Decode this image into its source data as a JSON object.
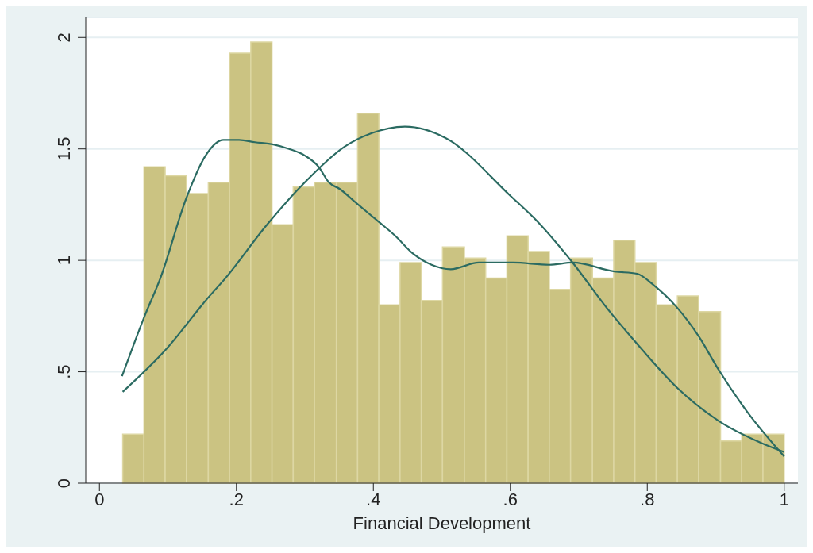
{
  "chart_data": {
    "type": "histogram",
    "xlabel": "Financial Development",
    "xlim": [
      -0.02,
      1.02
    ],
    "ylim": [
      0,
      2.09
    ],
    "xticks": [
      0,
      {
        "value": 0.2,
        "label": ".2"
      },
      {
        "value": 0.4,
        "label": ".4"
      },
      {
        "value": 0.6,
        "label": ".6"
      },
      {
        "value": 0.8,
        "label": ".8"
      },
      1
    ],
    "yticks": [
      0,
      {
        "value": 0.5,
        "label": ".5"
      },
      1,
      {
        "value": 1.5,
        "label": "1.5"
      },
      2
    ],
    "grid": "y",
    "series": [
      {
        "type": "histogram",
        "color": "#cbc382",
        "bins": [
          0.034,
          0.065,
          0.096,
          0.127,
          0.159,
          0.19,
          0.221,
          0.252,
          0.283,
          0.314,
          0.346,
          0.377,
          0.408,
          0.439,
          0.47,
          0.501,
          0.533,
          0.564,
          0.595,
          0.626,
          0.657,
          0.688,
          0.72,
          0.751,
          0.782,
          0.813,
          0.844,
          0.875,
          0.907,
          0.938,
          0.969,
          1.0
        ],
        "values": [
          0.22,
          1.42,
          1.38,
          1.3,
          1.35,
          1.93,
          1.98,
          1.16,
          1.33,
          1.35,
          1.35,
          1.66,
          0.8,
          0.99,
          0.82,
          1.06,
          1.01,
          0.92,
          1.11,
          1.04,
          0.87,
          1.01,
          0.92,
          1.09,
          0.99,
          0.8,
          0.84,
          0.77,
          0.19,
          0.22,
          0.22
        ]
      },
      {
        "type": "line",
        "color": "#2b6b62",
        "x": [
          0.033,
          0.066,
          0.089,
          0.127,
          0.155,
          0.181,
          0.204,
          0.227,
          0.254,
          0.277,
          0.3,
          0.32,
          0.335,
          0.351,
          0.374,
          0.409,
          0.432,
          0.458,
          0.485,
          0.513,
          0.554,
          0.604,
          0.657,
          0.691,
          0.752,
          0.785,
          0.809,
          0.843,
          0.875,
          0.904,
          0.946,
          1.0
        ],
        "values": [
          0.48,
          0.75,
          0.92,
          1.28,
          1.47,
          1.54,
          1.54,
          1.53,
          1.52,
          1.5,
          1.47,
          1.42,
          1.35,
          1.32,
          1.26,
          1.17,
          1.11,
          1.03,
          0.98,
          0.96,
          0.99,
          0.99,
          0.98,
          0.99,
          0.95,
          0.94,
          0.89,
          0.79,
          0.66,
          0.51,
          0.32,
          0.12
        ]
      },
      {
        "type": "line",
        "color": "#2b6b62",
        "x": [
          0.034,
          0.097,
          0.158,
          0.184,
          0.242,
          0.3,
          0.358,
          0.397,
          0.447,
          0.505,
          0.6,
          0.641,
          0.691,
          0.74,
          0.781,
          0.843,
          0.904,
          0.967,
          1.0
        ],
        "values": [
          0.41,
          0.6,
          0.83,
          0.92,
          1.15,
          1.35,
          1.51,
          1.57,
          1.6,
          1.55,
          1.29,
          1.17,
          0.99,
          0.79,
          0.64,
          0.43,
          0.28,
          0.18,
          0.14
        ]
      }
    ]
  }
}
